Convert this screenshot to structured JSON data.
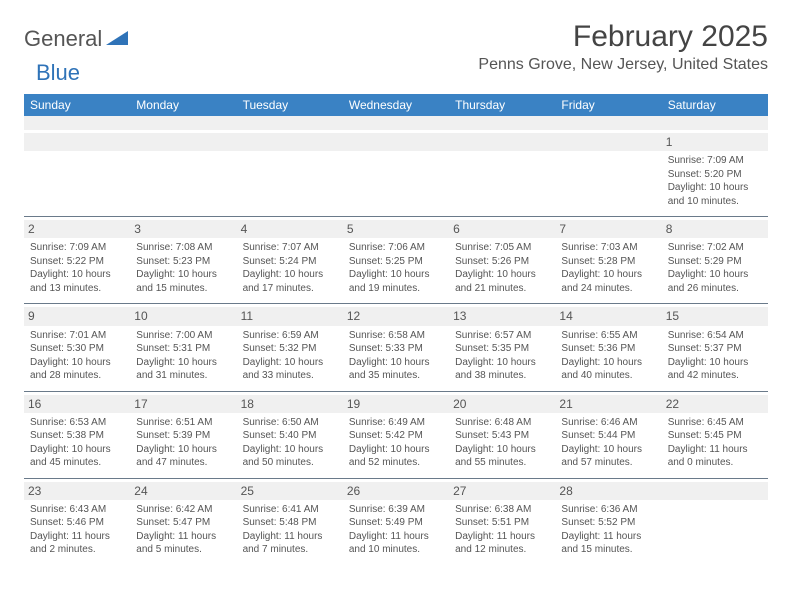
{
  "logo": {
    "text_dark": "General",
    "text_blue": "Blue"
  },
  "title": "February 2025",
  "location": "Penns Grove, New Jersey, United States",
  "colors": {
    "header_bg": "#3a82c4",
    "stripe_bg": "#f0f0f0",
    "border": "#6a7a8a",
    "text": "#555555"
  },
  "weekdays": [
    "Sunday",
    "Monday",
    "Tuesday",
    "Wednesday",
    "Thursday",
    "Friday",
    "Saturday"
  ],
  "weeks": [
    [
      {
        "num": "",
        "sunrise": "",
        "sunset": "",
        "daylight": ""
      },
      {
        "num": "",
        "sunrise": "",
        "sunset": "",
        "daylight": ""
      },
      {
        "num": "",
        "sunrise": "",
        "sunset": "",
        "daylight": ""
      },
      {
        "num": "",
        "sunrise": "",
        "sunset": "",
        "daylight": ""
      },
      {
        "num": "",
        "sunrise": "",
        "sunset": "",
        "daylight": ""
      },
      {
        "num": "",
        "sunrise": "",
        "sunset": "",
        "daylight": ""
      },
      {
        "num": "1",
        "sunrise": "Sunrise: 7:09 AM",
        "sunset": "Sunset: 5:20 PM",
        "daylight": "Daylight: 10 hours and 10 minutes."
      }
    ],
    [
      {
        "num": "2",
        "sunrise": "Sunrise: 7:09 AM",
        "sunset": "Sunset: 5:22 PM",
        "daylight": "Daylight: 10 hours and 13 minutes."
      },
      {
        "num": "3",
        "sunrise": "Sunrise: 7:08 AM",
        "sunset": "Sunset: 5:23 PM",
        "daylight": "Daylight: 10 hours and 15 minutes."
      },
      {
        "num": "4",
        "sunrise": "Sunrise: 7:07 AM",
        "sunset": "Sunset: 5:24 PM",
        "daylight": "Daylight: 10 hours and 17 minutes."
      },
      {
        "num": "5",
        "sunrise": "Sunrise: 7:06 AM",
        "sunset": "Sunset: 5:25 PM",
        "daylight": "Daylight: 10 hours and 19 minutes."
      },
      {
        "num": "6",
        "sunrise": "Sunrise: 7:05 AM",
        "sunset": "Sunset: 5:26 PM",
        "daylight": "Daylight: 10 hours and 21 minutes."
      },
      {
        "num": "7",
        "sunrise": "Sunrise: 7:03 AM",
        "sunset": "Sunset: 5:28 PM",
        "daylight": "Daylight: 10 hours and 24 minutes."
      },
      {
        "num": "8",
        "sunrise": "Sunrise: 7:02 AM",
        "sunset": "Sunset: 5:29 PM",
        "daylight": "Daylight: 10 hours and 26 minutes."
      }
    ],
    [
      {
        "num": "9",
        "sunrise": "Sunrise: 7:01 AM",
        "sunset": "Sunset: 5:30 PM",
        "daylight": "Daylight: 10 hours and 28 minutes."
      },
      {
        "num": "10",
        "sunrise": "Sunrise: 7:00 AM",
        "sunset": "Sunset: 5:31 PM",
        "daylight": "Daylight: 10 hours and 31 minutes."
      },
      {
        "num": "11",
        "sunrise": "Sunrise: 6:59 AM",
        "sunset": "Sunset: 5:32 PM",
        "daylight": "Daylight: 10 hours and 33 minutes."
      },
      {
        "num": "12",
        "sunrise": "Sunrise: 6:58 AM",
        "sunset": "Sunset: 5:33 PM",
        "daylight": "Daylight: 10 hours and 35 minutes."
      },
      {
        "num": "13",
        "sunrise": "Sunrise: 6:57 AM",
        "sunset": "Sunset: 5:35 PM",
        "daylight": "Daylight: 10 hours and 38 minutes."
      },
      {
        "num": "14",
        "sunrise": "Sunrise: 6:55 AM",
        "sunset": "Sunset: 5:36 PM",
        "daylight": "Daylight: 10 hours and 40 minutes."
      },
      {
        "num": "15",
        "sunrise": "Sunrise: 6:54 AM",
        "sunset": "Sunset: 5:37 PM",
        "daylight": "Daylight: 10 hours and 42 minutes."
      }
    ],
    [
      {
        "num": "16",
        "sunrise": "Sunrise: 6:53 AM",
        "sunset": "Sunset: 5:38 PM",
        "daylight": "Daylight: 10 hours and 45 minutes."
      },
      {
        "num": "17",
        "sunrise": "Sunrise: 6:51 AM",
        "sunset": "Sunset: 5:39 PM",
        "daylight": "Daylight: 10 hours and 47 minutes."
      },
      {
        "num": "18",
        "sunrise": "Sunrise: 6:50 AM",
        "sunset": "Sunset: 5:40 PM",
        "daylight": "Daylight: 10 hours and 50 minutes."
      },
      {
        "num": "19",
        "sunrise": "Sunrise: 6:49 AM",
        "sunset": "Sunset: 5:42 PM",
        "daylight": "Daylight: 10 hours and 52 minutes."
      },
      {
        "num": "20",
        "sunrise": "Sunrise: 6:48 AM",
        "sunset": "Sunset: 5:43 PM",
        "daylight": "Daylight: 10 hours and 55 minutes."
      },
      {
        "num": "21",
        "sunrise": "Sunrise: 6:46 AM",
        "sunset": "Sunset: 5:44 PM",
        "daylight": "Daylight: 10 hours and 57 minutes."
      },
      {
        "num": "22",
        "sunrise": "Sunrise: 6:45 AM",
        "sunset": "Sunset: 5:45 PM",
        "daylight": "Daylight: 11 hours and 0 minutes."
      }
    ],
    [
      {
        "num": "23",
        "sunrise": "Sunrise: 6:43 AM",
        "sunset": "Sunset: 5:46 PM",
        "daylight": "Daylight: 11 hours and 2 minutes."
      },
      {
        "num": "24",
        "sunrise": "Sunrise: 6:42 AM",
        "sunset": "Sunset: 5:47 PM",
        "daylight": "Daylight: 11 hours and 5 minutes."
      },
      {
        "num": "25",
        "sunrise": "Sunrise: 6:41 AM",
        "sunset": "Sunset: 5:48 PM",
        "daylight": "Daylight: 11 hours and 7 minutes."
      },
      {
        "num": "26",
        "sunrise": "Sunrise: 6:39 AM",
        "sunset": "Sunset: 5:49 PM",
        "daylight": "Daylight: 11 hours and 10 minutes."
      },
      {
        "num": "27",
        "sunrise": "Sunrise: 6:38 AM",
        "sunset": "Sunset: 5:51 PM",
        "daylight": "Daylight: 11 hours and 12 minutes."
      },
      {
        "num": "28",
        "sunrise": "Sunrise: 6:36 AM",
        "sunset": "Sunset: 5:52 PM",
        "daylight": "Daylight: 11 hours and 15 minutes."
      },
      {
        "num": "",
        "sunrise": "",
        "sunset": "",
        "daylight": ""
      }
    ]
  ]
}
